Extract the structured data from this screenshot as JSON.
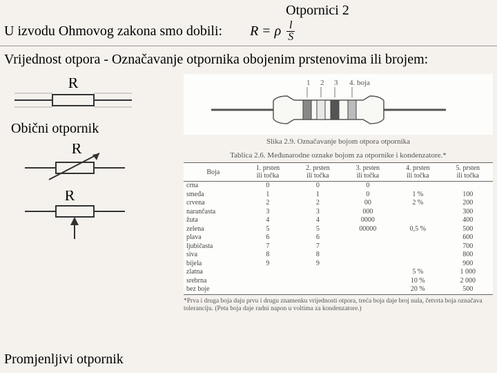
{
  "title": "Otpornici 2",
  "line1": "U izvodu Ohmovog zakona smo dobili:",
  "formula": {
    "lhs": "R",
    "eq": "=",
    "rho": "ρ",
    "num": "l",
    "den": "S"
  },
  "line2": "Vrijednost otpora - Označavanje otpornika obojenim prstenovima ili brojem:",
  "symbolR": "R",
  "label_plain": "Obični otpornik",
  "label_variable": "Promjenljivi otpornik",
  "fig": {
    "bands_label": {
      "b1": "1",
      "b2": "2",
      "b3": "3",
      "b4": "4. boja"
    },
    "caption": "Slika 2.9. Označavanje bojom otpora otpornika"
  },
  "table": {
    "caption": "Tablica 2.6. Međunarodne oznake bojom za otpornike i kondenzatore.*",
    "headers": [
      "Boja",
      "1. prsten ili točka",
      "2. prsten ili točka",
      "3. prsten ili točka",
      "4. prsten ili točka",
      "5. prsten ili točka"
    ],
    "rows": [
      [
        "crna",
        "0",
        "0",
        "0",
        "",
        ""
      ],
      [
        "smeđa",
        "1",
        "1",
        "0",
        "1 %",
        "100"
      ],
      [
        "crvena",
        "2",
        "2",
        "00",
        "2 %",
        "200"
      ],
      [
        "narančasta",
        "3",
        "3",
        "000",
        "",
        "300"
      ],
      [
        "žuta",
        "4",
        "4",
        "0000",
        "",
        "400"
      ],
      [
        "zelena",
        "5",
        "5",
        "00000",
        "0,5 %",
        "500"
      ],
      [
        "plava",
        "6",
        "6",
        "",
        "",
        "600"
      ],
      [
        "ljubičasta",
        "7",
        "7",
        "",
        "",
        "700"
      ],
      [
        "siva",
        "8",
        "8",
        "",
        "",
        "800"
      ],
      [
        "bijela",
        "9",
        "9",
        "",
        "",
        "900"
      ],
      [
        "zlatna",
        "",
        "",
        "",
        "5 %",
        "1 000"
      ],
      [
        "srebrna",
        "",
        "",
        "",
        "10 %",
        "2 000"
      ],
      [
        "bez boje",
        "",
        "",
        "",
        "20 %",
        "500"
      ]
    ],
    "footnote": "*Prva i druga boja daju prvu i drugu znamenku vrijednosti otpora, treća boja daje broj nula, četvrta boja označava toleranciju. (Peta boja daje radni napon u voltima za kondenzatore.)"
  },
  "colors": {
    "text": "#222222",
    "muted": "#666666",
    "line": "#333333",
    "bg": "#f5f2ed"
  }
}
